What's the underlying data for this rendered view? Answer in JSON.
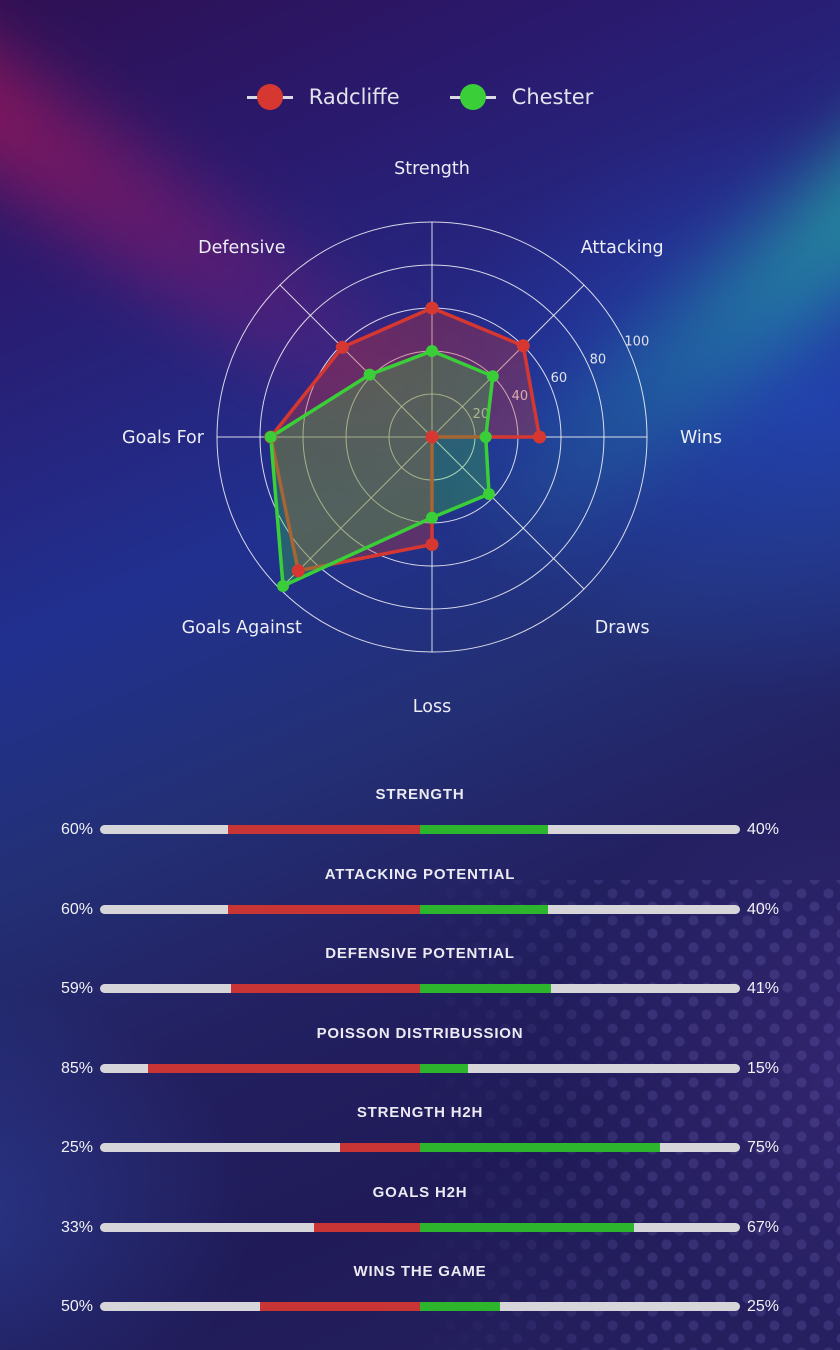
{
  "chart_data": {
    "type": "radar",
    "title": "",
    "axes": [
      "Strength",
      "Attacking",
      "Wins",
      "Draws",
      "Loss",
      "Goals Against",
      "Goals For",
      "Defensive"
    ],
    "rings": [
      20,
      40,
      60,
      80,
      100
    ],
    "max": 100,
    "grid": "circular",
    "legend_position": "top",
    "series": [
      {
        "name": "Radcliffe",
        "color": "#d63831",
        "fill": "rgba(214,56,49,0.33)",
        "values": [
          60,
          60,
          50,
          0,
          50,
          88,
          75,
          59
        ]
      },
      {
        "name": "Chester",
        "color": "#3ace38",
        "fill": "rgba(58,206,56,0.30)",
        "values": [
          40,
          40,
          25,
          37.5,
          37.5,
          98,
          75,
          41
        ]
      }
    ]
  },
  "comparison_bars": [
    {
      "title": "STRENGTH",
      "left_label": "60%",
      "right_label": "40%",
      "left_value": 60,
      "right_value": 40
    },
    {
      "title": "ATTACKING POTENTIAL",
      "left_label": "60%",
      "right_label": "40%",
      "left_value": 60,
      "right_value": 40
    },
    {
      "title": "DEFENSIVE POTENTIAL",
      "left_label": "59%",
      "right_label": "41%",
      "left_value": 59,
      "right_value": 41
    },
    {
      "title": "POISSON DISTRIBUSSION",
      "left_label": "85%",
      "right_label": "15%",
      "left_value": 85,
      "right_value": 15
    },
    {
      "title": "STRENGTH H2H",
      "left_label": "25%",
      "right_label": "75%",
      "left_value": 25,
      "right_value": 75
    },
    {
      "title": "GOALS H2H",
      "left_label": "33%",
      "right_label": "67%",
      "left_value": 33,
      "right_value": 67
    },
    {
      "title": "WINS THE GAME",
      "left_label": "50%",
      "right_label": "25%",
      "left_value": 50,
      "right_value": 25
    }
  ],
  "colors": {
    "bar_left": "#c93434",
    "bar_right": "#2db52d",
    "bar_track": "#d6d5da",
    "grid_line": "#ffffff",
    "text": "#edeef6"
  }
}
